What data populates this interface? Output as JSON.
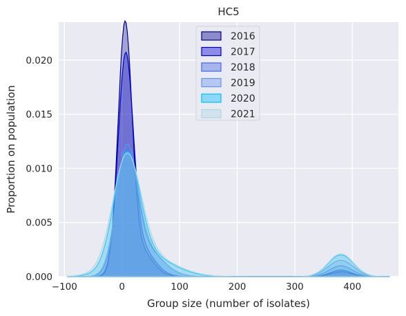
{
  "chart_data": {
    "type": "area",
    "title": "HC5",
    "xlabel": "Group size (number of isolates)",
    "ylabel": "Proportion on population",
    "xlim": [
      -110,
      480
    ],
    "ylim": [
      0,
      0.0235
    ],
    "xticks": [
      -100,
      0,
      100,
      200,
      300,
      400
    ],
    "xtick_labels": [
      "−100",
      "0",
      "100",
      "200",
      "300",
      "400"
    ],
    "yticks": [
      0.0,
      0.005,
      0.01,
      0.015,
      0.02
    ],
    "ytick_labels": [
      "0.000",
      "0.005",
      "0.010",
      "0.015",
      "0.020"
    ],
    "grid": true,
    "legend_position": "top-center",
    "colors": {
      "background": "#eaeaf2",
      "grid": "#ffffff",
      "text": "#262626"
    },
    "series": [
      {
        "name": "2016",
        "fill": "#00008b",
        "edge": "#00008b",
        "fill_opacity": 0.3,
        "peaks": [
          {
            "x": 5,
            "y": 0.0223,
            "sigma": 12
          },
          {
            "x": 30,
            "y": 0.0025,
            "sigma": 22
          },
          {
            "x": 380,
            "y": 0.00045,
            "sigma": 18
          }
        ]
      },
      {
        "name": "2017",
        "fill": "#0000cd",
        "edge": "#0000cd",
        "fill_opacity": 0.3,
        "peaks": [
          {
            "x": 6,
            "y": 0.019,
            "sigma": 13
          },
          {
            "x": 30,
            "y": 0.0028,
            "sigma": 24
          },
          {
            "x": 380,
            "y": 0.0006,
            "sigma": 18
          }
        ]
      },
      {
        "name": "2018",
        "fill": "#4169e1",
        "edge": "#4169e1",
        "fill_opacity": 0.3,
        "peaks": [
          {
            "x": 8,
            "y": 0.0108,
            "sigma": 17
          },
          {
            "x": 40,
            "y": 0.0025,
            "sigma": 30
          },
          {
            "x": 380,
            "y": 0.001,
            "sigma": 20
          }
        ]
      },
      {
        "name": "2019",
        "fill": "#6495ed",
        "edge": "#6495ed",
        "fill_opacity": 0.3,
        "peaks": [
          {
            "x": 8,
            "y": 0.0108,
            "sigma": 18
          },
          {
            "x": 40,
            "y": 0.0025,
            "sigma": 30
          },
          {
            "x": 380,
            "y": 0.0015,
            "sigma": 22
          }
        ]
      },
      {
        "name": "2020",
        "fill": "#00bfff",
        "edge": "#00bfff",
        "fill_opacity": 0.3,
        "peaks": [
          {
            "x": 8,
            "y": 0.01,
            "sigma": 22
          },
          {
            "x": 40,
            "y": 0.002,
            "sigma": 45
          },
          {
            "x": 380,
            "y": 0.002,
            "sigma": 22
          }
        ]
      },
      {
        "name": "2021",
        "fill": "#add8e6",
        "edge": "#add8e6",
        "fill_opacity": 0.3,
        "peaks": [
          {
            "x": 8,
            "y": 0.0098,
            "sigma": 24
          },
          {
            "x": 40,
            "y": 0.002,
            "sigma": 48
          },
          {
            "x": 380,
            "y": 0.0021,
            "sigma": 22
          }
        ]
      }
    ]
  }
}
